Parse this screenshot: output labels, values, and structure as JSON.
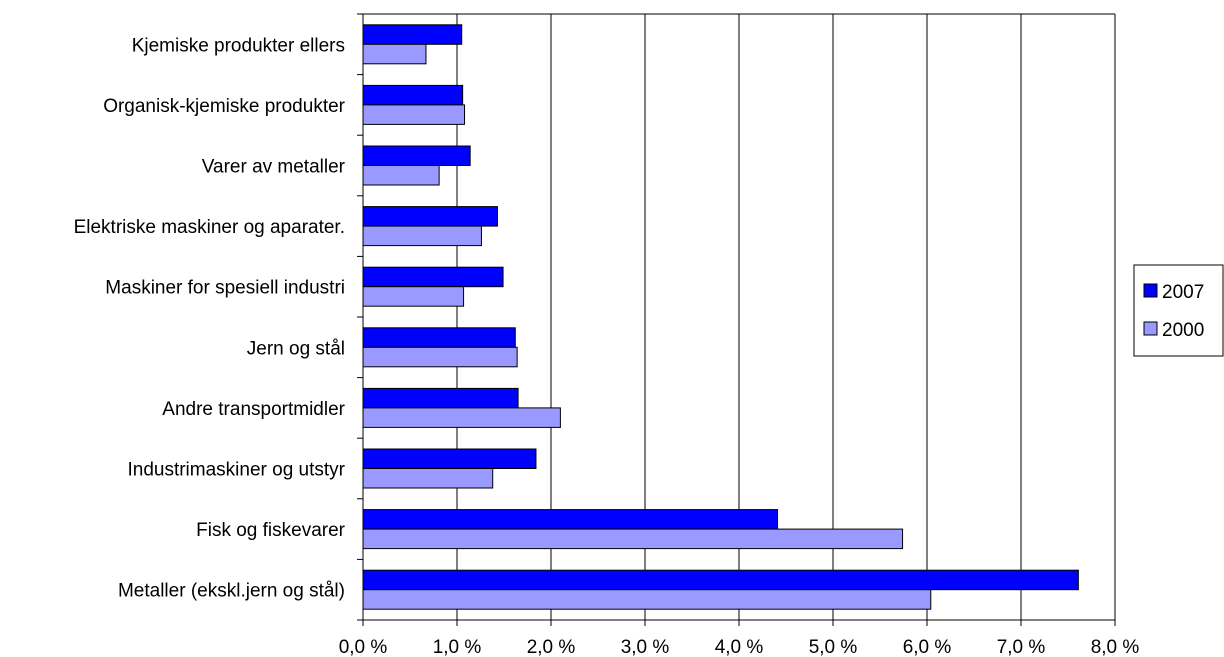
{
  "chart_data": {
    "type": "bar",
    "orientation": "horizontal",
    "title": "",
    "xlabel": "",
    "ylabel": "",
    "categories": [
      "Kjemiske produkter ellers",
      "Organisk-kjemiske produkter",
      "Varer av metaller",
      "Elektriske maskiner og aparater.",
      "Maskiner for spesiell industri",
      "Jern og stål",
      "Andre transportmidler",
      "Industrimaskiner og utstyr",
      "Fisk og fiskevarer",
      "Metaller (ekskl.jern og stål)"
    ],
    "series": [
      {
        "name": "2007",
        "color": "#0000FF",
        "values": [
          1.05,
          1.06,
          1.14,
          1.43,
          1.49,
          1.62,
          1.65,
          1.84,
          4.41,
          7.61
        ]
      },
      {
        "name": "2000",
        "color": "#9999FF",
        "values": [
          0.67,
          1.08,
          0.81,
          1.26,
          1.07,
          1.64,
          2.1,
          1.38,
          5.74,
          6.04
        ]
      }
    ],
    "xlim": [
      0,
      8
    ],
    "xticks": [
      "0,0 %",
      "1,0 %",
      "2,0 %",
      "3,0 %",
      "4,0 %",
      "5,0 %",
      "6,0 %",
      "7,0 %",
      "8,0 %"
    ],
    "grid": "vertical major gridlines",
    "legend_position": "right"
  }
}
